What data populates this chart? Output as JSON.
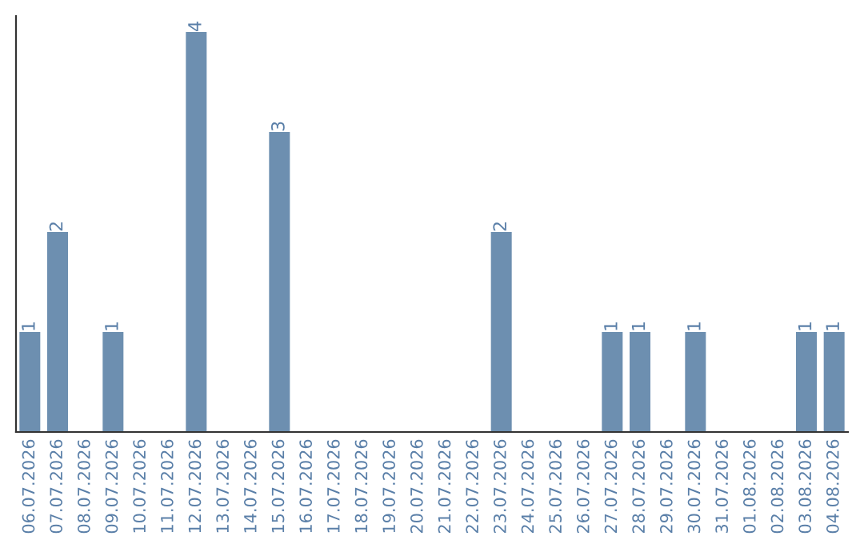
{
  "chart_data": {
    "type": "bar",
    "categories": [
      "06.07.2026",
      "07.07.2026",
      "08.07.2026",
      "09.07.2026",
      "10.07.2026",
      "11.07.2026",
      "12.07.2026",
      "13.07.2026",
      "14.07.2026",
      "15.07.2026",
      "16.07.2026",
      "17.07.2026",
      "18.07.2026",
      "19.07.2026",
      "20.07.2026",
      "21.07.2026",
      "22.07.2026",
      "23.07.2026",
      "24.07.2026",
      "25.07.2026",
      "26.07.2026",
      "27.07.2026",
      "28.07.2026",
      "29.07.2026",
      "30.07.2026",
      "31.07.2026",
      "01.08.2026",
      "02.08.2026",
      "03.08.2026",
      "04.08.2026"
    ],
    "values": [
      1,
      2,
      0,
      1,
      0,
      0,
      4,
      0,
      0,
      3,
      0,
      0,
      0,
      0,
      0,
      0,
      0,
      2,
      0,
      0,
      0,
      1,
      1,
      0,
      1,
      0,
      0,
      0,
      1,
      1
    ],
    "value_labels": [
      "1",
      "2",
      null,
      "1",
      null,
      null,
      "4",
      null,
      null,
      "3",
      null,
      null,
      null,
      null,
      null,
      null,
      null,
      "2",
      null,
      null,
      null,
      "1",
      "1",
      null,
      "1",
      null,
      null,
      null,
      "1",
      "1"
    ],
    "color": "#6d8fb0",
    "tick_labels": "x",
    "grid": false,
    "legend": false
  }
}
